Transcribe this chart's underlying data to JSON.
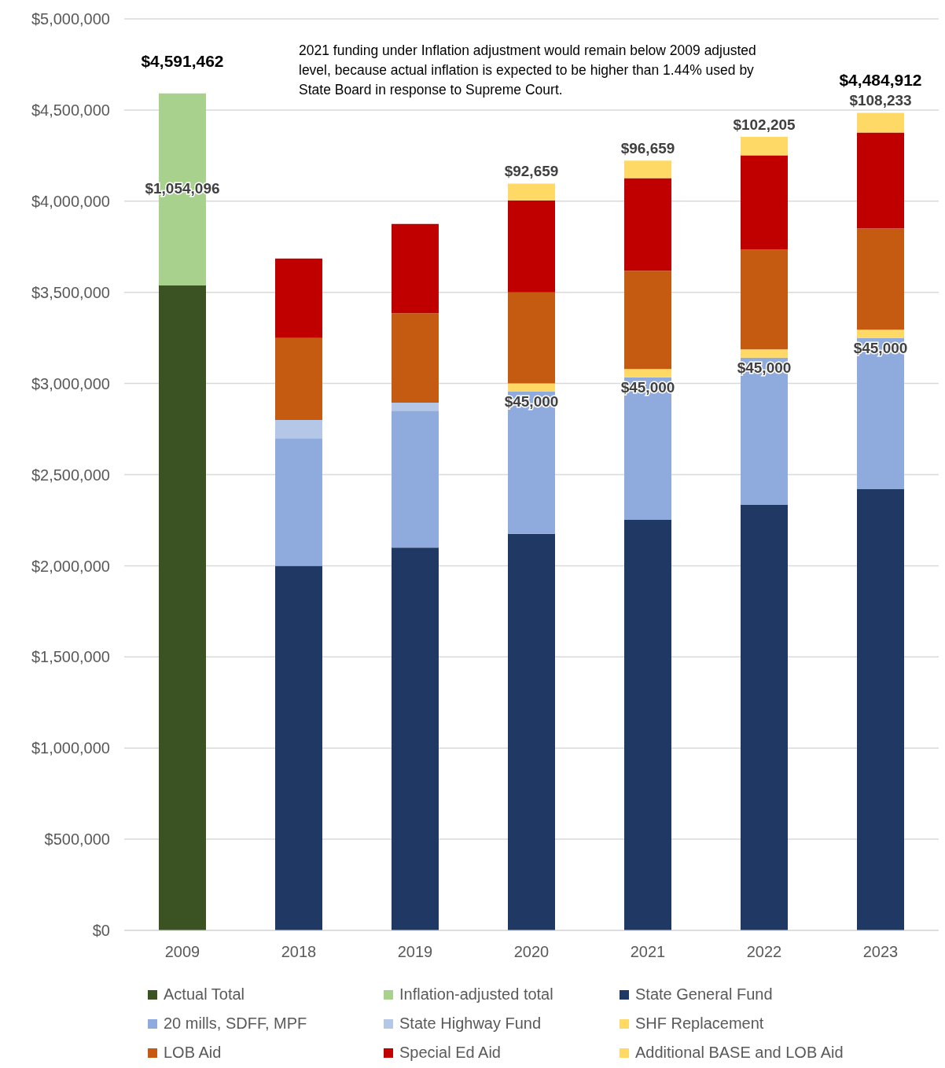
{
  "chart_data": {
    "type": "bar",
    "stacked": true,
    "categories": [
      "2009",
      "2018",
      "2019",
      "2020",
      "2021",
      "2022",
      "2023"
    ],
    "series": [
      {
        "name": "Actual Total",
        "color": "#3b5323",
        "values": [
          3537366,
          null,
          null,
          null,
          null,
          null,
          null
        ]
      },
      {
        "name": "Inflation-adjusted total",
        "color": "#a9d18e",
        "values": [
          1054096,
          null,
          null,
          null,
          null,
          null,
          null
        ],
        "value_labels": [
          "$1,054,096",
          null,
          null,
          null,
          null,
          null,
          null
        ]
      },
      {
        "name": "State General Fund",
        "color": "#203864",
        "values": [
          null,
          2000000,
          2100000,
          2175000,
          2252000,
          2334000,
          2420000
        ]
      },
      {
        "name": "20 mills, SDFF, MPF",
        "color": "#8faadc",
        "values": [
          null,
          700000,
          750000,
          780000,
          782000,
          808000,
          830000
        ]
      },
      {
        "name": "State Highway Fund",
        "color": "#b4c7e7",
        "values": [
          null,
          100000,
          45000,
          null,
          null,
          null,
          null
        ]
      },
      {
        "name": "SHF Replacement",
        "color": "#ffd966",
        "values": [
          null,
          null,
          null,
          45000,
          45000,
          45000,
          45000
        ],
        "value_labels": [
          null,
          null,
          null,
          "$45,000",
          "$45,000",
          "$45,000",
          "$45,000"
        ]
      },
      {
        "name": "LOB Aid",
        "color": "#c55a11",
        "values": [
          null,
          450000,
          490000,
          500000,
          539000,
          547000,
          555000
        ]
      },
      {
        "name": "Special Ed Aid",
        "color": "#c00000",
        "values": [
          null,
          435000,
          490000,
          504000,
          508000,
          517000,
          526679
        ]
      },
      {
        "name": "Additional BASE and LOB Aid",
        "color": "#ffd966",
        "values": [
          null,
          null,
          null,
          92659,
          96659,
          102205,
          108233
        ],
        "value_labels": [
          null,
          null,
          null,
          "$92,659",
          "$96,659",
          "$102,205",
          "$108,233"
        ]
      }
    ],
    "totals": [
      "$4,591,462",
      null,
      null,
      null,
      null,
      null,
      "$4,484,912"
    ],
    "ylim": [
      0,
      5000000
    ],
    "yticks": [
      {
        "value": 0,
        "label": "$0"
      },
      {
        "value": 500000,
        "label": "$500,000"
      },
      {
        "value": 1000000,
        "label": "$1,000,000"
      },
      {
        "value": 1500000,
        "label": "$1,500,000"
      },
      {
        "value": 2000000,
        "label": "$2,000,000"
      },
      {
        "value": 2500000,
        "label": "$2,500,000"
      },
      {
        "value": 3000000,
        "label": "$3,000,000"
      },
      {
        "value": 3500000,
        "label": "$3,500,000"
      },
      {
        "value": 4000000,
        "label": "$4,000,000"
      },
      {
        "value": 4500000,
        "label": "$4,500,000"
      },
      {
        "value": 5000000,
        "label": "$5,000,000"
      }
    ],
    "grid": "y",
    "legend": "bottom",
    "annotations": [
      "2021 funding under Inflation adjustment would remain below 2009 adjusted level, because actual inflation is expected to be higher than 1.44% used by State Board in response to Supreme Court."
    ]
  }
}
